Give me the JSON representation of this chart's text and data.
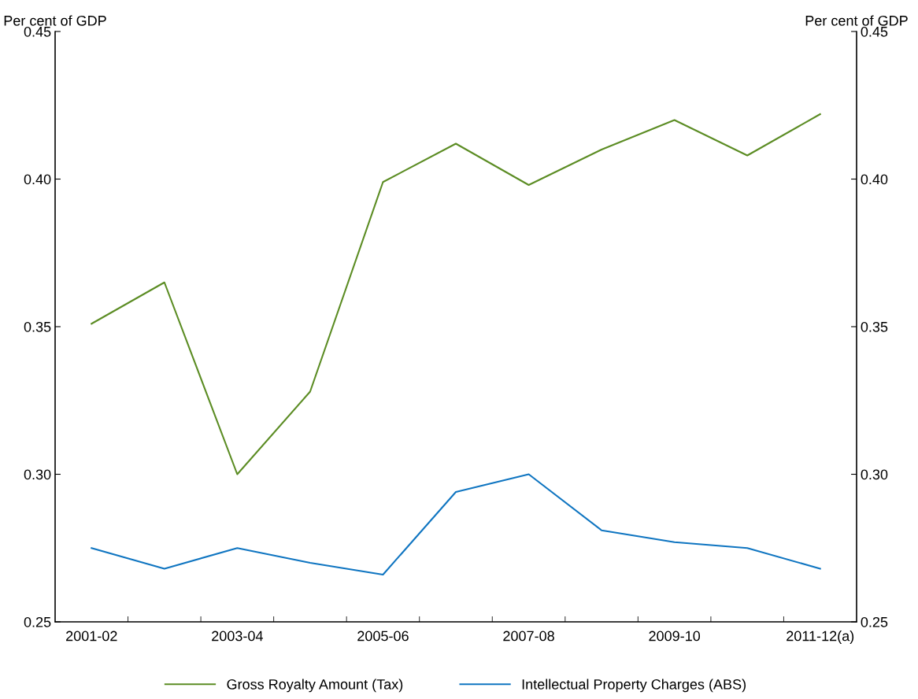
{
  "chart_data": {
    "type": "line",
    "ylabel": "Per cent of GDP",
    "y2label": "Per cent of GDP",
    "categories": [
      "2001-02",
      null,
      "2003-04",
      null,
      "2005-06",
      null,
      "2007-08",
      null,
      "2009-10",
      null,
      "2011-12(a)"
    ],
    "series": [
      {
        "name": "Gross Royalty Amount (Tax)",
        "color": "#5b8c23",
        "values": [
          0.351,
          0.365,
          0.3,
          0.328,
          0.399,
          0.412,
          0.398,
          0.41,
          0.42,
          0.408,
          0.422
        ]
      },
      {
        "name": "Intellectual Property Charges (ABS)",
        "color": "#0f75c1",
        "values": [
          0.275,
          0.268,
          0.275,
          0.27,
          0.266,
          0.294,
          0.3,
          0.281,
          0.277,
          0.275,
          0.268
        ]
      }
    ],
    "ylim": [
      0.25,
      0.45
    ],
    "yticks": [
      {
        "value": 0.25,
        "label": "0.25"
      },
      {
        "value": 0.3,
        "label": "0.30"
      },
      {
        "value": 0.35,
        "label": "0.35"
      },
      {
        "value": 0.4,
        "label": "0.40"
      },
      {
        "value": 0.45,
        "label": "0.45"
      }
    ],
    "y2lim": [
      0.25,
      0.45
    ],
    "y2ticks": [
      {
        "value": 0.25,
        "label": "0.25"
      },
      {
        "value": 0.3,
        "label": "0.30"
      },
      {
        "value": 0.35,
        "label": "0.35"
      },
      {
        "value": 0.4,
        "label": "0.40"
      },
      {
        "value": 0.45,
        "label": "0.45"
      }
    ],
    "grid": false,
    "legend": "bottom",
    "marker": "none",
    "line_style": "solid"
  }
}
